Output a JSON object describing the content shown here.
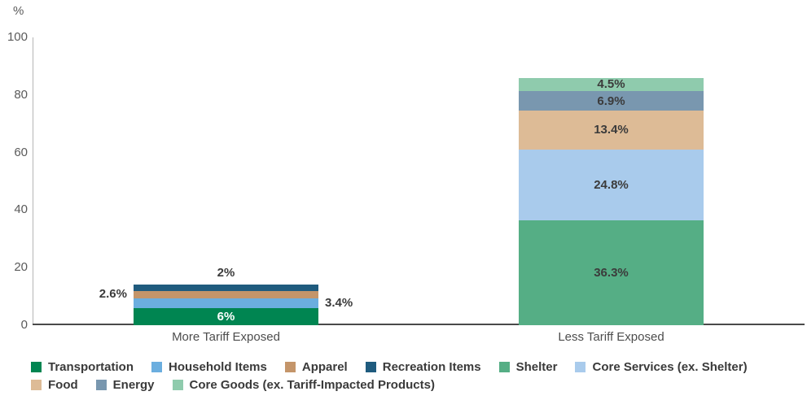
{
  "chart_data": {
    "type": "bar",
    "stacked": true,
    "ylabel": "%",
    "ylim": [
      0,
      100
    ],
    "yticks": [
      0,
      20,
      40,
      60,
      80,
      100
    ],
    "grid": false,
    "categories": [
      "More Tariff Exposed",
      "Less Tariff Exposed"
    ],
    "bars": [
      {
        "category": "More Tariff Exposed",
        "total": 14.0,
        "segments": [
          {
            "name": "Transportation",
            "value": 6,
            "label": "6%",
            "color": "#008551",
            "label_placement": "inside",
            "label_color": "#ffffff"
          },
          {
            "name": "Household Items",
            "value": 3.4,
            "label": "3.4%",
            "color": "#6BAEDF",
            "label_placement": "right",
            "label_color": "#3b3b3b"
          },
          {
            "name": "Apparel",
            "value": 2.6,
            "label": "2.6%",
            "color": "#C4956A",
            "label_placement": "left",
            "label_color": "#3b3b3b"
          },
          {
            "name": "Recreation Items",
            "value": 2,
            "label": "2%",
            "color": "#1F5B7E",
            "label_placement": "top",
            "label_color": "#3b3b3b"
          }
        ]
      },
      {
        "category": "Less Tariff Exposed",
        "total": 85.9,
        "segments": [
          {
            "name": "Shelter",
            "value": 36.3,
            "label": "36.3%",
            "color": "#55AE85",
            "label_placement": "inside",
            "label_color": "#3b3b3b"
          },
          {
            "name": "Core Services (ex. Shelter)",
            "value": 24.8,
            "label": "24.8%",
            "color": "#A9CBEC",
            "label_placement": "inside",
            "label_color": "#3b3b3b"
          },
          {
            "name": "Food",
            "value": 13.4,
            "label": "13.4%",
            "color": "#DDBB96",
            "label_placement": "inside",
            "label_color": "#3b3b3b"
          },
          {
            "name": "Energy",
            "value": 6.9,
            "label": "6.9%",
            "color": "#7997AF",
            "label_placement": "inside",
            "label_color": "#3b3b3b"
          },
          {
            "name": "Core Goods (ex. Tariff-Impacted Products)",
            "value": 4.5,
            "label": "4.5%",
            "color": "#8FCBAD",
            "label_placement": "inside",
            "label_color": "#3b3b3b"
          }
        ]
      }
    ],
    "legend": {
      "position": "bottom",
      "rows": [
        [
          {
            "label": "Transportation",
            "color": "#008551"
          },
          {
            "label": "Household Items",
            "color": "#6BAEDF"
          },
          {
            "label": "Apparel",
            "color": "#C4956A"
          },
          {
            "label": "Recreation Items",
            "color": "#1F5B7E"
          },
          {
            "label": "Shelter",
            "color": "#55AE85"
          },
          {
            "label": "Core Services (ex. Shelter)",
            "color": "#A9CBEC"
          }
        ],
        [
          {
            "label": "Food",
            "color": "#DDBB96"
          },
          {
            "label": "Energy",
            "color": "#7997AF"
          },
          {
            "label": "Core Goods (ex. Tariff-Impacted Products)",
            "color": "#8FCBAD"
          }
        ]
      ]
    }
  }
}
